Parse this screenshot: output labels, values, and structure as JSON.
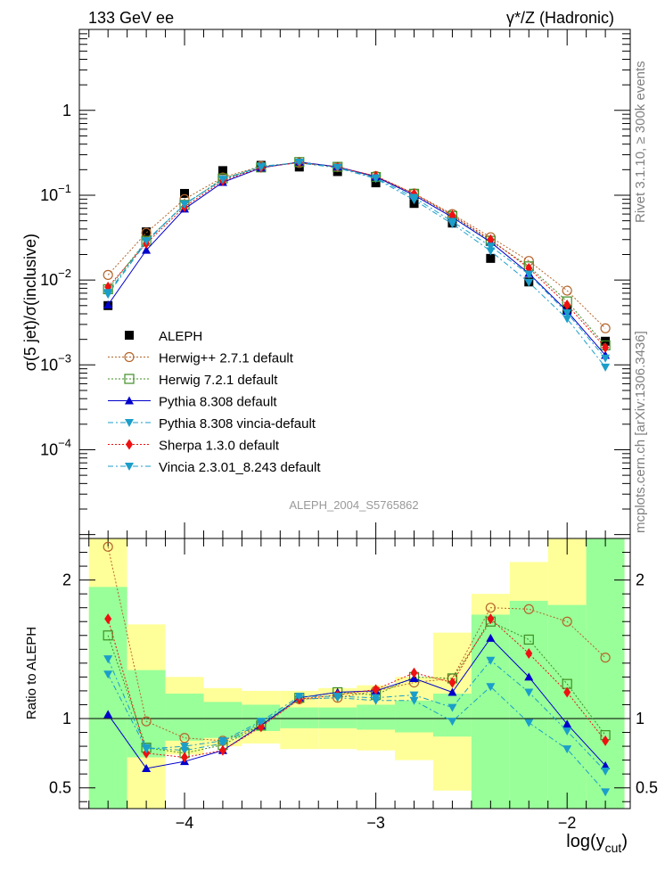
{
  "header": {
    "left_title": "133 GeV ee",
    "right_title": "γ*/Z (Hadronic)"
  },
  "side_labels": {
    "rivet": "Rivet 3.1.10, ≥ 300k events",
    "mcplots": "mcplots.cern.ch [arXiv:1306.3436]"
  },
  "analysis_label": "ALEPH_2004_S5765862",
  "chart_data": [
    {
      "id": "main",
      "type": "scatter",
      "ylabel": "σ(5 jet)/σ(inclusive)",
      "yscale": "log",
      "xlim": [
        -4.55,
        -1.67
      ],
      "ylim": [
        9e-06,
        9
      ],
      "yticks": [
        {
          "value": 1,
          "label": "1"
        },
        {
          "value": 0.1,
          "label": "10",
          "exp": "−1"
        },
        {
          "value": 0.01,
          "label": "10",
          "exp": "−2"
        },
        {
          "value": 0.001,
          "label": "10",
          "exp": "−3"
        },
        {
          "value": 0.0001,
          "label": "10",
          "exp": "−4"
        }
      ],
      "x": [
        -4.4,
        -4.2,
        -4.0,
        -3.8,
        -3.6,
        -3.4,
        -3.2,
        -3.0,
        -2.8,
        -2.6,
        -2.4,
        -2.2,
        -2.0,
        -1.8
      ],
      "series": [
        {
          "name": "ALEPH",
          "color": "#000000",
          "marker": "square",
          "line": "none",
          "values": [
            0.005,
            0.037,
            0.105,
            0.195,
            0.225,
            0.215,
            0.19,
            0.14,
            0.08,
            0.047,
            0.018,
            0.0095,
            0.0045,
            0.0019
          ]
        },
        {
          "name": "Herwig++ 2.7.1 default",
          "color": "#b5652c",
          "marker": "circle-open",
          "line": "dotted",
          "values": [
            0.0115,
            0.036,
            0.09,
            0.162,
            0.22,
            0.24,
            0.215,
            0.168,
            0.105,
            0.06,
            0.032,
            0.0168,
            0.0075,
            0.0027
          ]
        },
        {
          "name": "Herwig 7.2.1 default",
          "color": "#3e8e23",
          "marker": "square-open",
          "line": "dotted",
          "values": [
            0.0078,
            0.029,
            0.077,
            0.158,
            0.213,
            0.246,
            0.216,
            0.164,
            0.104,
            0.057,
            0.029,
            0.0145,
            0.0056,
            0.0017
          ]
        },
        {
          "name": "Pythia 8.308 default",
          "color": "#0000cc",
          "marker": "triangle-up",
          "line": "solid",
          "values": [
            0.0051,
            0.0225,
            0.069,
            0.142,
            0.21,
            0.246,
            0.216,
            0.165,
            0.1,
            0.055,
            0.028,
            0.012,
            0.0043,
            0.0013
          ]
        },
        {
          "name": "Pythia 8.308 vincia-default",
          "color": "#1b9ec9",
          "marker": "triangle-down",
          "line": "dashdot",
          "values": [
            0.0068,
            0.028,
            0.079,
            0.152,
            0.22,
            0.24,
            0.21,
            0.157,
            0.088,
            0.046,
            0.022,
            0.0094,
            0.0035,
            0.00094
          ]
        },
        {
          "name": "Sherpa 1.3.0 default",
          "color": "#ee1111",
          "marker": "diamond",
          "line": "dotted",
          "values": [
            0.0083,
            0.027,
            0.073,
            0.148,
            0.212,
            0.243,
            0.215,
            0.168,
            0.104,
            0.058,
            0.03,
            0.0138,
            0.0051,
            0.0016
          ]
        },
        {
          "name": "Vincia 2.3.01_8.243 default",
          "color": "#1b9ec9",
          "marker": "triangle-down",
          "line": "dashdot",
          "values": [
            0.0071,
            0.029,
            0.078,
            0.154,
            0.215,
            0.245,
            0.213,
            0.16,
            0.094,
            0.049,
            0.025,
            0.0117,
            0.0041,
            0.0012
          ]
        }
      ]
    },
    {
      "id": "ratio",
      "type": "scatter",
      "ylabel": "Ratio to ALEPH",
      "xlabel": "log(y",
      "xlabel_sub": "cut",
      "xlabel_close": ")",
      "xlim": [
        -4.55,
        -1.67
      ],
      "ylim": [
        0.35,
        2.3
      ],
      "reference_line": 1,
      "xticks": [
        {
          "value": -4,
          "label": "−4"
        },
        {
          "value": -3,
          "label": "−3"
        },
        {
          "value": -2,
          "label": "−2"
        }
      ],
      "yticks": [
        {
          "value": 0.5,
          "label": "0.5"
        },
        {
          "value": 1,
          "label": "1"
        },
        {
          "value": 2,
          "label": "2"
        }
      ],
      "error_bands": {
        "stat_color": "#99ff99",
        "total_color": "#ffff99",
        "bins": [
          {
            "x0": -4.5,
            "x1": -4.3,
            "stat": [
              0.35,
              1.95
            ],
            "total": [
              0.35,
              2.3
            ]
          },
          {
            "x0": -4.3,
            "x1": -4.1,
            "stat": [
              0.72,
              1.35
            ],
            "total": [
              0.35,
              1.68
            ]
          },
          {
            "x0": -4.1,
            "x1": -3.9,
            "stat": [
              0.84,
              1.18
            ],
            "total": [
              0.74,
              1.3
            ]
          },
          {
            "x0": -3.9,
            "x1": -3.7,
            "stat": [
              0.86,
              1.12
            ],
            "total": [
              0.8,
              1.22
            ]
          },
          {
            "x0": -3.7,
            "x1": -3.5,
            "stat": [
              0.91,
              1.1
            ],
            "total": [
              0.82,
              1.2
            ]
          },
          {
            "x0": -3.5,
            "x1": -3.3,
            "stat": [
              0.93,
              1.08
            ],
            "total": [
              0.78,
              1.2
            ]
          },
          {
            "x0": -3.3,
            "x1": -3.1,
            "stat": [
              0.93,
              1.08
            ],
            "total": [
              0.78,
              1.22
            ]
          },
          {
            "x0": -3.1,
            "x1": -2.9,
            "stat": [
              0.92,
              1.1
            ],
            "total": [
              0.77,
              1.24
            ]
          },
          {
            "x0": -2.9,
            "x1": -2.7,
            "stat": [
              0.9,
              1.13
            ],
            "total": [
              0.7,
              1.3
            ]
          },
          {
            "x0": -2.7,
            "x1": -2.5,
            "stat": [
              0.87,
              1.18
            ],
            "total": [
              0.48,
              1.62
            ]
          },
          {
            "x0": -2.5,
            "x1": -2.3,
            "stat": [
              0.35,
              1.75
            ],
            "total": [
              0.35,
              1.9
            ]
          },
          {
            "x0": -2.3,
            "x1": -2.1,
            "stat": [
              0.35,
              1.85
            ],
            "total": [
              0.35,
              2.13
            ]
          },
          {
            "x0": -2.1,
            "x1": -1.9,
            "stat": [
              0.35,
              1.82
            ],
            "total": [
              0.35,
              2.3
            ]
          },
          {
            "x0": -1.9,
            "x1": -1.7,
            "stat": [
              0.35,
              2.3
            ],
            "total": [
              0.35,
              2.3
            ]
          }
        ]
      },
      "x": [
        -4.4,
        -4.2,
        -4.0,
        -3.8,
        -3.6,
        -3.4,
        -3.2,
        -3.0,
        -2.8,
        -2.6,
        -2.4,
        -2.2,
        -2.0,
        -1.8
      ],
      "series": [
        {
          "name": "Herwig++ 2.7.1 default",
          "color": "#b5652c",
          "marker": "circle-open",
          "line": "dotted",
          "values": [
            2.24,
            0.98,
            0.86,
            0.84,
            0.95,
            1.14,
            1.15,
            1.2,
            1.26,
            1.29,
            1.8,
            1.79,
            1.7,
            1.44
          ]
        },
        {
          "name": "Herwig 7.2.1 default",
          "color": "#3e8e23",
          "marker": "square-open",
          "line": "dotted",
          "values": [
            1.6,
            0.79,
            0.75,
            0.81,
            0.95,
            1.15,
            1.19,
            1.17,
            1.3,
            1.29,
            1.7,
            1.57,
            1.25,
            0.88
          ]
        },
        {
          "name": "Pythia 8.308 default",
          "color": "#0000cc",
          "marker": "triangle-up",
          "line": "solid",
          "values": [
            1.03,
            0.64,
            0.69,
            0.77,
            0.95,
            1.15,
            1.19,
            1.2,
            1.29,
            1.19,
            1.58,
            1.3,
            0.96,
            0.66
          ]
        },
        {
          "name": "Pythia 8.308 vincia-default",
          "color": "#1b9ec9",
          "marker": "triangle-down",
          "line": "dashdot",
          "values": [
            1.43,
            0.79,
            0.77,
            0.82,
            0.97,
            1.14,
            1.15,
            1.13,
            1.13,
            0.98,
            1.23,
            0.97,
            0.78,
            0.47
          ]
        },
        {
          "name": "Sherpa 1.3.0 default",
          "color": "#ee1111",
          "marker": "diamond",
          "line": "dotted",
          "values": [
            1.72,
            0.75,
            0.72,
            0.77,
            0.94,
            1.14,
            1.17,
            1.21,
            1.33,
            1.26,
            1.72,
            1.47,
            1.19,
            0.84
          ]
        },
        {
          "name": "Vincia 2.3.01_8.243 default",
          "color": "#1b9ec9",
          "marker": "triangle-down",
          "line": "dashdot",
          "values": [
            1.32,
            0.78,
            0.8,
            0.84,
            0.98,
            1.16,
            1.16,
            1.15,
            1.17,
            1.08,
            1.42,
            1.19,
            0.91,
            0.62
          ]
        }
      ]
    }
  ]
}
